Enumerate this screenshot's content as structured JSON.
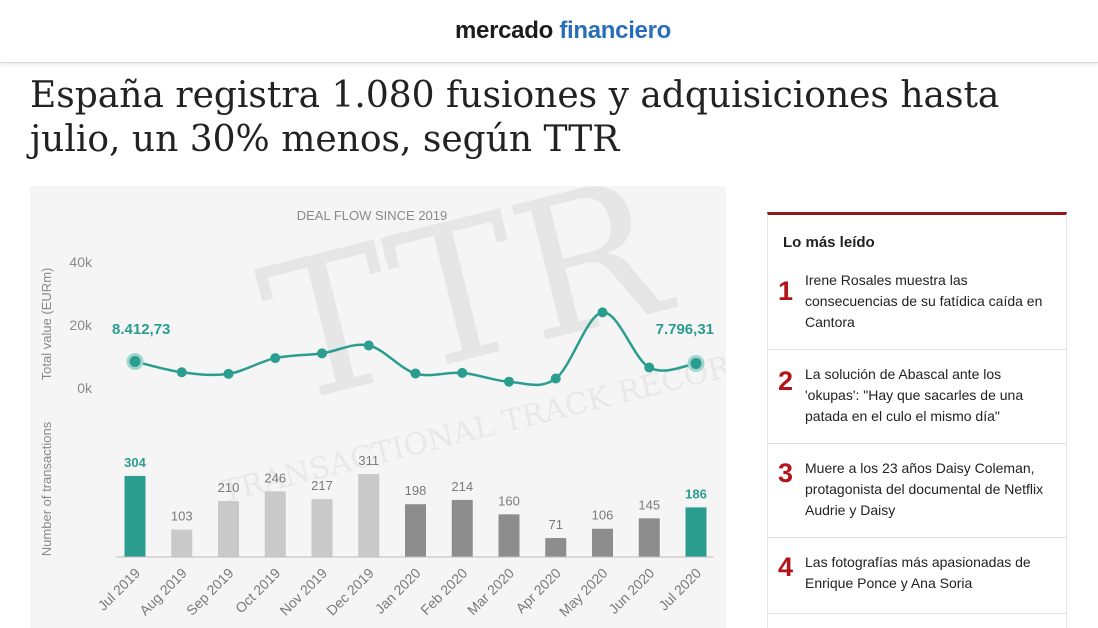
{
  "header": {
    "logo_part1": "mercado",
    "logo_part2": "financiero"
  },
  "article": {
    "headline": "España registra 1.080 fusiones y adquisiciones hasta julio, un 30% menos, según TTR"
  },
  "chart": {
    "watermark": "TTR",
    "watermark_sub": "TRANSACTIONAL TRACK RECORD",
    "title": "DEAL FLOW SINCE 2019",
    "line_axis_label": "Total value (EURm)",
    "bar_axis_label": "Number of transactions",
    "line_first_label": "8.412,73",
    "line_last_label": "7.796,31",
    "colors": {
      "teal": "#2a9d8f",
      "light_bar": "#c9c9c9",
      "dark_bar": "#8d8d8d"
    }
  },
  "chart_data": {
    "type": "bar",
    "title": "DEAL FLOW SINCE 2019",
    "categories": [
      "Jul 2019",
      "Aug 2019",
      "Sep 2019",
      "Oct 2019",
      "Nov 2019",
      "Dec 2019",
      "Jan 2020",
      "Feb 2020",
      "Mar 2020",
      "Apr 2020",
      "May 2020",
      "Jun 2020",
      "Jul 2020"
    ],
    "series": [
      {
        "name": "Number of transactions",
        "type": "bar",
        "values": [
          304,
          103,
          210,
          246,
          217,
          311,
          198,
          214,
          160,
          71,
          106,
          145,
          186
        ]
      },
      {
        "name": "Total value (EURm)",
        "type": "line",
        "values": [
          8412.73,
          5000,
          4500,
          9500,
          11000,
          13500,
          4600,
          4800,
          2000,
          3000,
          24000,
          6500,
          7796.31
        ]
      }
    ],
    "ylabel": "Number of transactions",
    "y2label": "Total value (EURm)",
    "y2ticks": [
      "0k",
      "20k",
      "40k"
    ],
    "y2lim": [
      0,
      40000
    ],
    "ylim": [
      0,
      330
    ],
    "highlighted": [
      "Jul 2019",
      "Jul 2020"
    ],
    "legend": "none"
  },
  "sidebar": {
    "title": "Lo más leído",
    "items": [
      {
        "num": "1",
        "text": "Irene Rosales muestra las consecuencias de su fatídica caída en Cantora"
      },
      {
        "num": "2",
        "text": "La solución de Abascal ante los 'okupas': \"Hay que sacarles de una patada en el culo el mismo día\""
      },
      {
        "num": "3",
        "text": "Muere a los 23 años Daisy Coleman, protagonista del documental de Netflix Audrie y Daisy"
      },
      {
        "num": "4",
        "text": "Las fotografías más apasionadas de Enrique Ponce y Ana Soria"
      }
    ]
  }
}
